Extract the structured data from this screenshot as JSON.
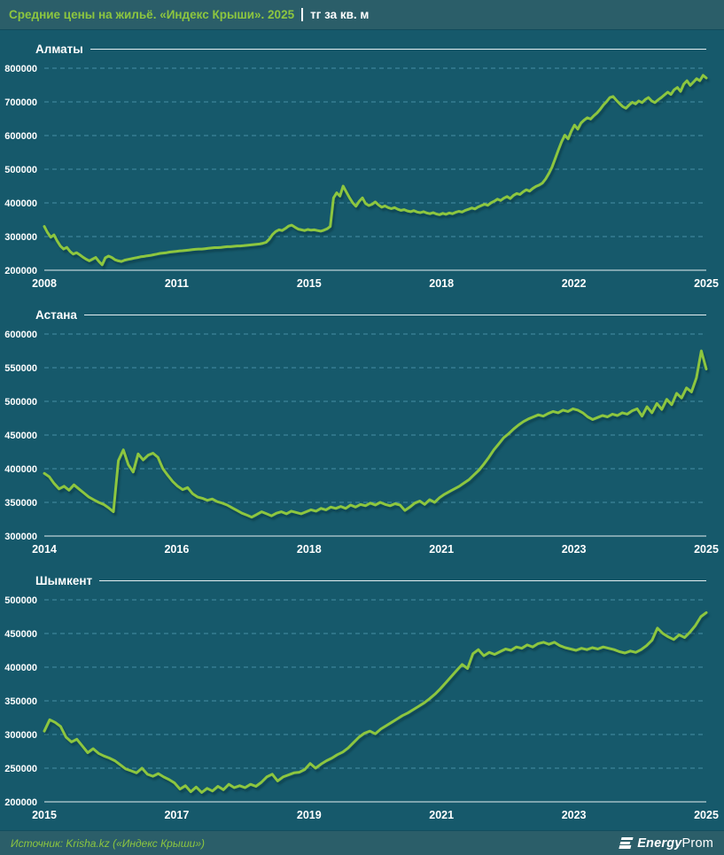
{
  "header": {
    "title_green": "Средние цены на жильё. «Индекс Крыши». 2025",
    "title_white": "тг за кв. м"
  },
  "footer": {
    "source": "Источник: Krisha.kz («Индекс Крыши»)",
    "logo_bold": "Energy",
    "logo_light": "Prom"
  },
  "colors": {
    "background": "#16596B",
    "band": "#2B5E69",
    "accent_green": "#8DC63F",
    "line": "#8DC63F",
    "grid": "#478FA4",
    "axis": "#E6EFF2",
    "text": "#FFFFFF"
  },
  "chart_data": [
    {
      "type": "line",
      "title": "Алматы",
      "unit": "тг за кв. м",
      "unit_scale": 1000,
      "ylim": [
        200000,
        800000
      ],
      "ytick_step": 100000,
      "grid": "dashed",
      "legend": "none",
      "x_labels": [
        "2008",
        "2011",
        "2015",
        "2018",
        "2022",
        "2025"
      ],
      "values_thousands": [
        330,
        312,
        298,
        305,
        287,
        272,
        263,
        268,
        256,
        248,
        252,
        246,
        239,
        233,
        228,
        233,
        238,
        226,
        216,
        237,
        242,
        238,
        231,
        228,
        226,
        230,
        232,
        234,
        236,
        238,
        240,
        241,
        243,
        244,
        246,
        248,
        250,
        251,
        252,
        254,
        255,
        256,
        257,
        258,
        259,
        260,
        261,
        262,
        263,
        263,
        264,
        265,
        266,
        267,
        267,
        268,
        269,
        270,
        270,
        271,
        272,
        272,
        273,
        274,
        275,
        276,
        277,
        278,
        280,
        283,
        292,
        306,
        315,
        320,
        318,
        324,
        331,
        334,
        328,
        322,
        320,
        318,
        321,
        319,
        320,
        318,
        316,
        319,
        323,
        330,
        415,
        430,
        420,
        450,
        432,
        415,
        400,
        390,
        405,
        415,
        398,
        392,
        396,
        403,
        394,
        387,
        391,
        386,
        383,
        386,
        381,
        378,
        380,
        376,
        374,
        377,
        373,
        371,
        374,
        370,
        368,
        371,
        367,
        365,
        369,
        366,
        370,
        368,
        372,
        375,
        373,
        378,
        381,
        385,
        382,
        388,
        392,
        396,
        393,
        400,
        405,
        411,
        407,
        414,
        419,
        413,
        422,
        428,
        425,
        433,
        439,
        435,
        443,
        449,
        453,
        459,
        471,
        487,
        506,
        532,
        558,
        582,
        601,
        590,
        613,
        631,
        619,
        637,
        646,
        653,
        649,
        659,
        667,
        678,
        691,
        701,
        713,
        716,
        705,
        695,
        686,
        681,
        691,
        699,
        694,
        703,
        698,
        707,
        713,
        703,
        698,
        706,
        713,
        721,
        729,
        722,
        736,
        743,
        731,
        753,
        763,
        749,
        759,
        769,
        763,
        779,
        771
      ]
    },
    {
      "type": "line",
      "title": "Астана",
      "unit": "тг за кв. м",
      "unit_scale": 1000,
      "ylim": [
        300000,
        600000
      ],
      "ytick_step": 50000,
      "grid": "dashed",
      "legend": "none",
      "x_labels": [
        "2014",
        "2016",
        "2018",
        "2021",
        "2023",
        "2025"
      ],
      "values_thousands": [
        393,
        388,
        378,
        370,
        374,
        368,
        376,
        370,
        364,
        358,
        354,
        350,
        347,
        342,
        336,
        412,
        428,
        406,
        395,
        422,
        413,
        420,
        423,
        417,
        400,
        390,
        381,
        374,
        369,
        372,
        363,
        358,
        356,
        353,
        355,
        351,
        349,
        346,
        342,
        338,
        334,
        331,
        328,
        332,
        336,
        333,
        330,
        334,
        336,
        333,
        337,
        335,
        333,
        336,
        339,
        337,
        341,
        339,
        343,
        341,
        344,
        341,
        346,
        343,
        347,
        345,
        349,
        346,
        350,
        347,
        345,
        348,
        346,
        338,
        343,
        349,
        352,
        347,
        354,
        350,
        357,
        362,
        366,
        370,
        374,
        379,
        384,
        391,
        398,
        407,
        417,
        428,
        437,
        446,
        452,
        459,
        465,
        470,
        474,
        477,
        480,
        478,
        482,
        485,
        483,
        487,
        485,
        489,
        487,
        483,
        477,
        473,
        476,
        479,
        477,
        481,
        479,
        483,
        481,
        486,
        489,
        478,
        492,
        483,
        497,
        488,
        503,
        495,
        512,
        505,
        520,
        514,
        535,
        575,
        548
      ]
    },
    {
      "type": "line",
      "title": "Шымкент",
      "unit": "тг за кв. м",
      "unit_scale": 1000,
      "ylim": [
        200000,
        500000
      ],
      "ytick_step": 50000,
      "grid": "dashed",
      "legend": "none",
      "x_labels": [
        "2015",
        "2017",
        "2019",
        "2021",
        "2023",
        "2025"
      ],
      "values_thousands": [
        305,
        322,
        318,
        312,
        296,
        289,
        293,
        283,
        273,
        279,
        272,
        268,
        265,
        261,
        255,
        249,
        246,
        243,
        250,
        241,
        238,
        242,
        237,
        233,
        228,
        219,
        224,
        215,
        222,
        214,
        220,
        216,
        223,
        218,
        226,
        221,
        224,
        221,
        226,
        223,
        229,
        237,
        241,
        231,
        237,
        240,
        243,
        244,
        248,
        257,
        250,
        256,
        261,
        265,
        270,
        274,
        280,
        288,
        296,
        302,
        305,
        301,
        308,
        313,
        318,
        323,
        328,
        332,
        337,
        342,
        347,
        353,
        360,
        368,
        377,
        386,
        395,
        404,
        398,
        420,
        426,
        417,
        422,
        419,
        423,
        427,
        425,
        430,
        428,
        433,
        430,
        435,
        437,
        434,
        437,
        432,
        429,
        427,
        425,
        428,
        426,
        429,
        427,
        430,
        428,
        426,
        423,
        421,
        424,
        422,
        426,
        432,
        440,
        458,
        450,
        445,
        441,
        448,
        444,
        452,
        462,
        475,
        481
      ]
    }
  ]
}
